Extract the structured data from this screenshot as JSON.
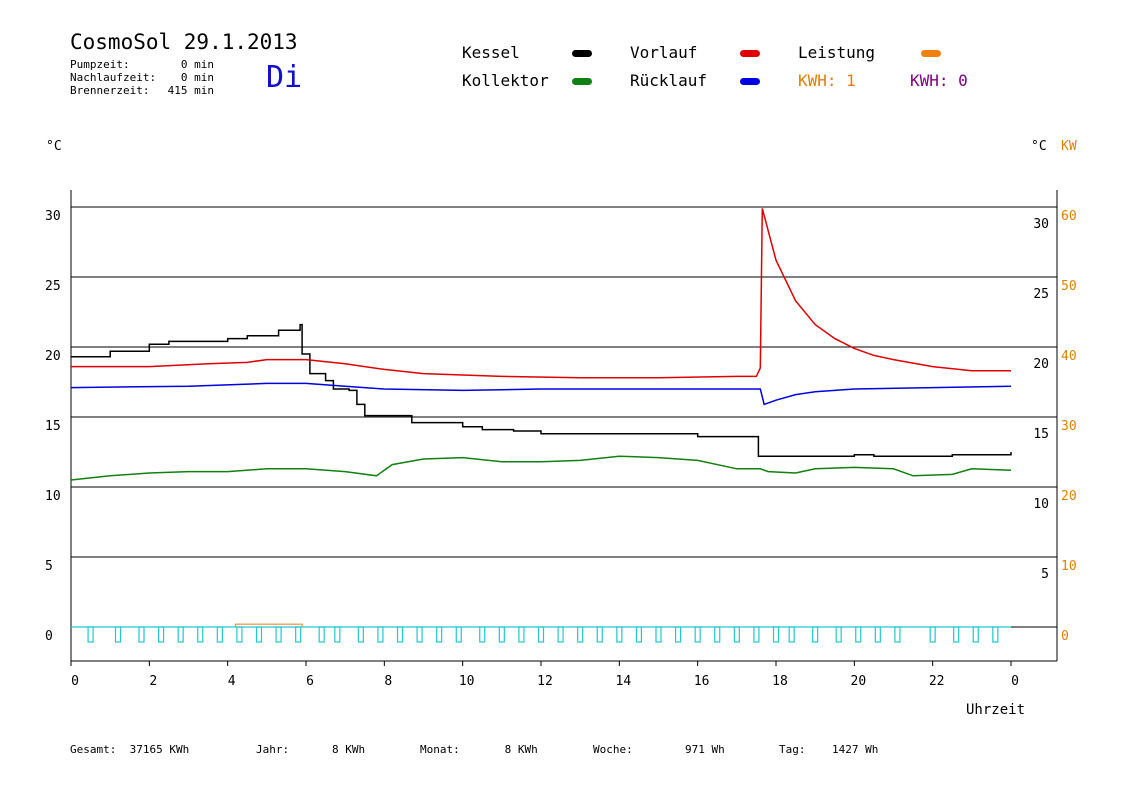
{
  "header": {
    "title": "CosmoSol 29.1.2013",
    "day": "Di",
    "stats": [
      {
        "label": "Pumpzeit:",
        "value": "0 min"
      },
      {
        "label": "Nachlaufzeit:",
        "value": "0 min"
      },
      {
        "label": "Brennerzeit:",
        "value": "415 min"
      }
    ]
  },
  "legend": {
    "items": [
      {
        "label": "Kessel",
        "color": "#000000"
      },
      {
        "label": "Vorlauf",
        "color": "#e00000"
      },
      {
        "label": "Leistung",
        "color": "#f08010"
      },
      {
        "label": "Kollektor",
        "color": "#108010"
      },
      {
        "label": "Rücklauf",
        "color": "#0000e0"
      }
    ],
    "kwh1": {
      "label": "KWH: 1",
      "color": "#e08000"
    },
    "kwh2": {
      "label": "KWH: 0",
      "color": "#800080"
    }
  },
  "chart_data": {
    "type": "line",
    "title": "",
    "xlabel": "Uhrzeit",
    "ylabel_left": "°C",
    "ylabel_right": "°C",
    "ylabel_right2": "KW",
    "x_ticks": [
      "0",
      "2",
      "4",
      "6",
      "8",
      "10",
      "12",
      "14",
      "16",
      "18",
      "20",
      "22",
      "0"
    ],
    "y_ticks_left": [
      "0",
      "5",
      "10",
      "15",
      "20",
      "25",
      "30"
    ],
    "y_ticks_right": [
      "5",
      "10",
      "15",
      "20",
      "25",
      "30"
    ],
    "y_ticks_kw": [
      "0",
      "10",
      "20",
      "30",
      "40",
      "50",
      "60"
    ],
    "xlim": [
      0,
      24
    ],
    "ylim": [
      -2.5,
      32
    ],
    "grid": true,
    "series": [
      {
        "name": "Kessel",
        "color": "#000000",
        "step": true,
        "points": [
          [
            0,
            19.3
          ],
          [
            1,
            19.7
          ],
          [
            2,
            20.2
          ],
          [
            2.5,
            20.4
          ],
          [
            4,
            20.6
          ],
          [
            4.5,
            20.8
          ],
          [
            5.3,
            21.2
          ],
          [
            5.85,
            21.6
          ],
          [
            5.9,
            19.5
          ],
          [
            6.1,
            18.1
          ],
          [
            6.5,
            17.6
          ],
          [
            6.7,
            17.0
          ],
          [
            7.1,
            16.9
          ],
          [
            7.3,
            15.9
          ],
          [
            7.5,
            15.1
          ],
          [
            8.3,
            15.1
          ],
          [
            8.7,
            14.6
          ],
          [
            10,
            14.3
          ],
          [
            10.5,
            14.1
          ],
          [
            11.3,
            14.0
          ],
          [
            12,
            13.8
          ],
          [
            14.5,
            13.8
          ],
          [
            16,
            13.6
          ],
          [
            16.5,
            13.6
          ],
          [
            17.5,
            13.6
          ],
          [
            17.55,
            12.2
          ],
          [
            18,
            12.2
          ],
          [
            20,
            12.3
          ],
          [
            20.5,
            12.2
          ],
          [
            22.5,
            12.3
          ],
          [
            23,
            12.3
          ],
          [
            24,
            12.5
          ]
        ]
      },
      {
        "name": "Vorlauf",
        "color": "#e00000",
        "step": false,
        "points": [
          [
            0,
            18.6
          ],
          [
            2,
            18.6
          ],
          [
            3.5,
            18.8
          ],
          [
            4.5,
            18.9
          ],
          [
            5,
            19.1
          ],
          [
            6,
            19.1
          ],
          [
            7,
            18.8
          ],
          [
            8,
            18.4
          ],
          [
            9,
            18.1
          ],
          [
            11,
            17.9
          ],
          [
            13,
            17.8
          ],
          [
            15,
            17.8
          ],
          [
            17,
            17.9
          ],
          [
            17.5,
            17.9
          ],
          [
            17.6,
            18.5
          ],
          [
            17.65,
            29.9
          ],
          [
            18,
            26.2
          ],
          [
            18.5,
            23.3
          ],
          [
            19,
            21.6
          ],
          [
            19.5,
            20.6
          ],
          [
            20,
            19.9
          ],
          [
            20.5,
            19.4
          ],
          [
            21,
            19.1
          ],
          [
            22,
            18.6
          ],
          [
            23,
            18.3
          ],
          [
            24,
            18.3
          ]
        ]
      },
      {
        "name": "Rücklauf",
        "color": "#0000e0",
        "step": false,
        "points": [
          [
            0,
            17.1
          ],
          [
            3,
            17.2
          ],
          [
            5,
            17.4
          ],
          [
            6,
            17.4
          ],
          [
            7,
            17.2
          ],
          [
            8,
            17.0
          ],
          [
            10,
            16.9
          ],
          [
            12,
            17.0
          ],
          [
            14,
            17.0
          ],
          [
            17.5,
            17.0
          ],
          [
            17.6,
            17.0
          ],
          [
            17.7,
            15.9
          ],
          [
            18,
            16.2
          ],
          [
            18.5,
            16.6
          ],
          [
            19,
            16.8
          ],
          [
            20,
            17.0
          ],
          [
            22,
            17.1
          ],
          [
            24,
            17.2
          ]
        ]
      },
      {
        "name": "Kollektor",
        "color": "#108010",
        "step": false,
        "points": [
          [
            0,
            10.5
          ],
          [
            1,
            10.8
          ],
          [
            2,
            11.0
          ],
          [
            3,
            11.1
          ],
          [
            4,
            11.1
          ],
          [
            5,
            11.3
          ],
          [
            6,
            11.3
          ],
          [
            7,
            11.1
          ],
          [
            7.8,
            10.8
          ],
          [
            8.2,
            11.6
          ],
          [
            9,
            12.0
          ],
          [
            10,
            12.1
          ],
          [
            11,
            11.8
          ],
          [
            12,
            11.8
          ],
          [
            13,
            11.9
          ],
          [
            14,
            12.2
          ],
          [
            15,
            12.1
          ],
          [
            16,
            11.9
          ],
          [
            17,
            11.3
          ],
          [
            17.6,
            11.3
          ],
          [
            17.8,
            11.1
          ],
          [
            18.5,
            11.0
          ],
          [
            19,
            11.3
          ],
          [
            20,
            11.4
          ],
          [
            21,
            11.3
          ],
          [
            21.5,
            10.8
          ],
          [
            22.5,
            10.9
          ],
          [
            23,
            11.3
          ],
          [
            24,
            11.2
          ]
        ]
      }
    ],
    "leistung": {
      "name": "Leistung",
      "color": "#e09030",
      "interval": [
        4.2,
        5.9
      ],
      "value_kw": 0.4
    },
    "pump_series": {
      "name": "Pump",
      "color": "#20c8d0",
      "pulses": [
        0.5,
        1.2,
        1.8,
        2.3,
        2.8,
        3.3,
        3.8,
        4.3,
        4.8,
        5.3,
        5.8,
        6.4,
        6.8,
        7.4,
        7.9,
        8.4,
        8.9,
        9.4,
        9.9,
        10.5,
        11.0,
        11.5,
        12.0,
        12.5,
        13.0,
        13.5,
        14.0,
        14.5,
        15.0,
        15.5,
        16.0,
        16.5,
        17.0,
        17.5,
        18.0,
        18.4,
        19.0,
        19.6,
        20.1,
        20.6,
        21.1,
        22.0,
        22.6,
        23.1,
        23.6
      ]
    }
  },
  "footer": [
    {
      "label": "Gesamt:",
      "value": "37165 KWh"
    },
    {
      "label": "Jahr:",
      "value": "8 KWh"
    },
    {
      "label": "Monat:",
      "value": "8 KWh"
    },
    {
      "label": "Woche:",
      "value": "971 Wh"
    },
    {
      "label": "Tag:",
      "value": "1427 Wh"
    }
  ]
}
